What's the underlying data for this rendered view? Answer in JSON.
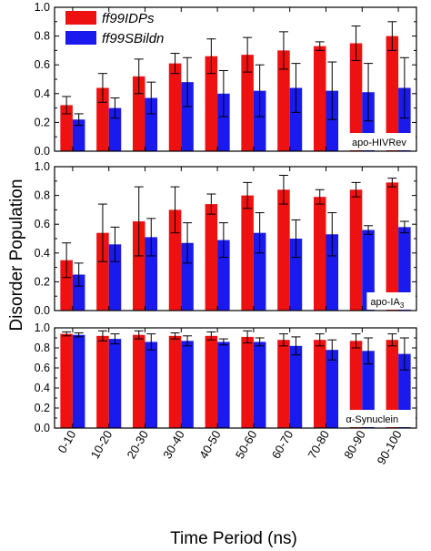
{
  "figure": {
    "ylabel": "Disorder Population",
    "xlabel": "Time Period (ns)"
  },
  "colors": {
    "ff99IDPs": "#ee1111",
    "ff99SBildn": "#1a1aee",
    "axis": "#000000"
  },
  "legend": [
    {
      "name": "ff99IDPs",
      "color": "#ee1111"
    },
    {
      "name": "ff99SBildn",
      "color": "#1a1aee"
    }
  ],
  "chart_data": [
    {
      "type": "bar",
      "label": "apo-HIVRev",
      "categories": [
        "0-10",
        "10-20",
        "20-30",
        "30-40",
        "40-50",
        "50-60",
        "60-70",
        "70-80",
        "80-90",
        "90-100"
      ],
      "ylim": [
        0,
        1.0
      ],
      "yticks": [
        "0.0",
        "0.2",
        "0.4",
        "0.6",
        "0.8",
        "1.0"
      ],
      "grid": false,
      "legend_position": "top-left",
      "series": [
        {
          "name": "ff99IDPs",
          "values": [
            0.32,
            0.44,
            0.52,
            0.61,
            0.66,
            0.67,
            0.7,
            0.73,
            0.75,
            0.8
          ],
          "errors": [
            0.06,
            0.1,
            0.12,
            0.07,
            0.12,
            0.12,
            0.13,
            0.03,
            0.12,
            0.1
          ]
        },
        {
          "name": "ff99SBildn",
          "values": [
            0.22,
            0.3,
            0.37,
            0.48,
            0.4,
            0.42,
            0.44,
            0.42,
            0.41,
            0.44
          ],
          "errors": [
            0.04,
            0.07,
            0.11,
            0.17,
            0.16,
            0.18,
            0.17,
            0.2,
            0.2,
            0.21
          ]
        }
      ]
    },
    {
      "type": "bar",
      "label": "apo-IA",
      "label_subscript": "3",
      "categories": [
        "0-10",
        "10-20",
        "20-30",
        "30-40",
        "40-50",
        "50-60",
        "60-70",
        "70-80",
        "80-90",
        "90-100"
      ],
      "ylim": [
        0,
        1.0
      ],
      "yticks": [
        "0.0",
        "0.2",
        "0.4",
        "0.6",
        "0.8",
        "1.0"
      ],
      "grid": false,
      "series": [
        {
          "name": "ff99IDPs",
          "values": [
            0.35,
            0.54,
            0.62,
            0.7,
            0.74,
            0.8,
            0.84,
            0.79,
            0.84,
            0.89
          ],
          "errors": [
            0.12,
            0.2,
            0.24,
            0.16,
            0.07,
            0.09,
            0.1,
            0.05,
            0.05,
            0.03
          ]
        },
        {
          "name": "ff99SBildn",
          "values": [
            0.25,
            0.46,
            0.51,
            0.47,
            0.49,
            0.54,
            0.5,
            0.53,
            0.56,
            0.58
          ],
          "errors": [
            0.08,
            0.12,
            0.13,
            0.14,
            0.12,
            0.14,
            0.13,
            0.15,
            0.03,
            0.04
          ]
        }
      ]
    },
    {
      "type": "bar",
      "label": "α-Synuclein",
      "categories": [
        "0-10",
        "10-20",
        "20-30",
        "30-40",
        "40-50",
        "50-60",
        "60-70",
        "70-80",
        "80-90",
        "90-100"
      ],
      "ylim": [
        0,
        1.0
      ],
      "yticks": [
        "0.0",
        "0.2",
        "0.4",
        "0.6",
        "0.8",
        "1.0"
      ],
      "grid": false,
      "series": [
        {
          "name": "ff99IDPs",
          "values": [
            0.94,
            0.92,
            0.93,
            0.92,
            0.92,
            0.91,
            0.88,
            0.88,
            0.87,
            0.88
          ],
          "errors": [
            0.02,
            0.05,
            0.04,
            0.03,
            0.04,
            0.06,
            0.06,
            0.06,
            0.07,
            0.06
          ]
        },
        {
          "name": "ff99SBildn",
          "values": [
            0.93,
            0.89,
            0.86,
            0.87,
            0.86,
            0.86,
            0.82,
            0.78,
            0.77,
            0.74
          ],
          "errors": [
            0.02,
            0.05,
            0.08,
            0.05,
            0.03,
            0.04,
            0.09,
            0.1,
            0.13,
            0.16
          ]
        }
      ]
    }
  ]
}
